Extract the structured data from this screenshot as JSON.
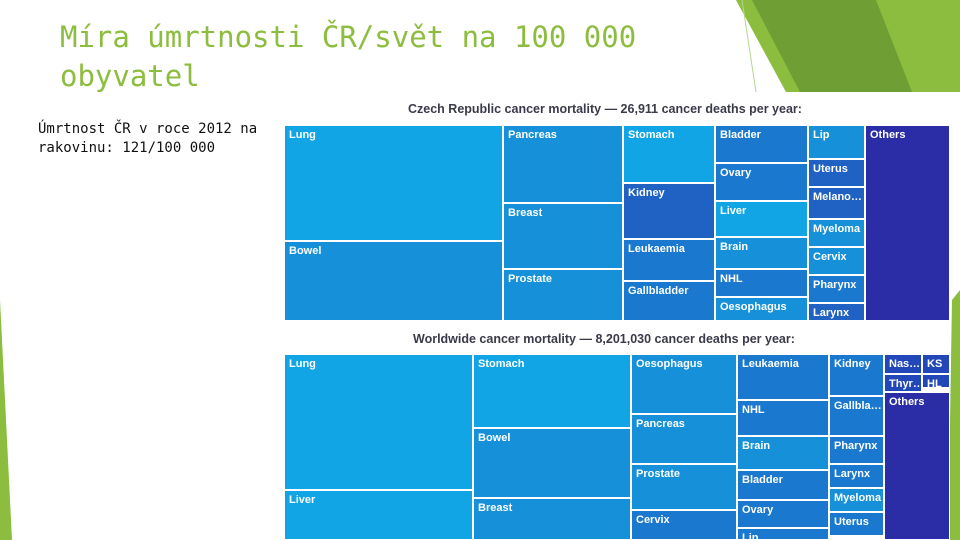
{
  "slide": {
    "title": "Míra úmrtnosti ČR/svět na 100 000 obyvatel",
    "body": "Úmrtnost ČR v roce 2012 na rakovinu: 121/100 000"
  },
  "colors": {
    "accent_green": "#8cbd3f",
    "accent_green_dark": "#6f9e34",
    "cell_blues": [
      "#12a5e6",
      "#1590d9",
      "#1a78cf",
      "#1f62c4",
      "#2247b8",
      "#2a2da6"
    ]
  },
  "chart_data": [
    {
      "type": "treemap",
      "title": "Czech Republic cancer mortality — 26,911 cancer deaths per year:",
      "cells": [
        {
          "label": "Lung",
          "shade": 0
        },
        {
          "label": "Bowel",
          "shade": 1
        },
        {
          "label": "Pancreas",
          "shade": 1
        },
        {
          "label": "Breast",
          "shade": 1
        },
        {
          "label": "Prostate",
          "shade": 1
        },
        {
          "label": "Stomach",
          "shade": 0
        },
        {
          "label": "Kidney",
          "shade": 3
        },
        {
          "label": "Leukaemia",
          "shade": 2
        },
        {
          "label": "Gallbladder",
          "shade": 2
        },
        {
          "label": "Bladder",
          "shade": 2
        },
        {
          "label": "Ovary",
          "shade": 2
        },
        {
          "label": "Liver",
          "shade": 0
        },
        {
          "label": "Brain",
          "shade": 1
        },
        {
          "label": "NHL",
          "shade": 2
        },
        {
          "label": "Oesophagus",
          "shade": 1
        },
        {
          "label": "Lip",
          "shade": 1
        },
        {
          "label": "Uterus",
          "shade": 3
        },
        {
          "label": "Melano…",
          "shade": 3
        },
        {
          "label": "Myeloma",
          "shade": 1
        },
        {
          "label": "Cervix",
          "shade": 1
        },
        {
          "label": "Pharynx",
          "shade": 2
        },
        {
          "label": "Larynx",
          "shade": 3
        },
        {
          "label": "Others",
          "shade": 5
        }
      ]
    },
    {
      "type": "treemap",
      "title": "Worldwide cancer mortality — 8,201,030 cancer deaths per year:",
      "cells": [
        {
          "label": "Lung",
          "shade": 0
        },
        {
          "label": "Liver",
          "shade": 0
        },
        {
          "label": "Stomach",
          "shade": 0
        },
        {
          "label": "Bowel",
          "shade": 1
        },
        {
          "label": "Breast",
          "shade": 1
        },
        {
          "label": "Oesophagus",
          "shade": 1
        },
        {
          "label": "Pancreas",
          "shade": 1
        },
        {
          "label": "Prostate",
          "shade": 1
        },
        {
          "label": "Cervix",
          "shade": 2
        },
        {
          "label": "Leukaemia",
          "shade": 2
        },
        {
          "label": "NHL",
          "shade": 2
        },
        {
          "label": "Brain",
          "shade": 1
        },
        {
          "label": "Bladder",
          "shade": 2
        },
        {
          "label": "Ovary",
          "shade": 2
        },
        {
          "label": "Lip",
          "shade": 2
        },
        {
          "label": "Kidney",
          "shade": 2
        },
        {
          "label": "Gallbla…",
          "shade": 2
        },
        {
          "label": "Pharynx",
          "shade": 2
        },
        {
          "label": "Larynx",
          "shade": 2
        },
        {
          "label": "Myeloma",
          "shade": 1
        },
        {
          "label": "Uterus",
          "shade": 2
        },
        {
          "label": "Nas…",
          "shade": 4
        },
        {
          "label": "KS",
          "shade": 4
        },
        {
          "label": "Thyr…",
          "shade": 4
        },
        {
          "label": "HL",
          "shade": 4
        },
        {
          "label": "Others",
          "shade": 5
        }
      ]
    }
  ]
}
